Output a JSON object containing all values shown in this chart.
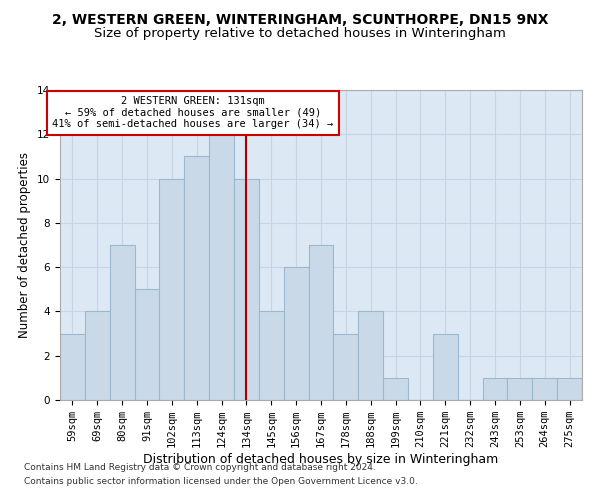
{
  "title1": "2, WESTERN GREEN, WINTERINGHAM, SCUNTHORPE, DN15 9NX",
  "title2": "Size of property relative to detached houses in Winteringham",
  "xlabel": "Distribution of detached houses by size in Winteringham",
  "ylabel": "Number of detached properties",
  "footnote1": "Contains HM Land Registry data © Crown copyright and database right 2024.",
  "footnote2": "Contains public sector information licensed under the Open Government Licence v3.0.",
  "categories": [
    "59sqm",
    "69sqm",
    "80sqm",
    "91sqm",
    "102sqm",
    "113sqm",
    "124sqm",
    "134sqm",
    "145sqm",
    "156sqm",
    "167sqm",
    "178sqm",
    "188sqm",
    "199sqm",
    "210sqm",
    "221sqm",
    "232sqm",
    "243sqm",
    "253sqm",
    "264sqm",
    "275sqm"
  ],
  "values": [
    3,
    4,
    7,
    5,
    10,
    11,
    12,
    10,
    4,
    6,
    7,
    3,
    4,
    1,
    0,
    3,
    0,
    1,
    1,
    1,
    1
  ],
  "bar_color": "#c9d9e8",
  "bar_edgecolor": "#9ab8d0",
  "bar_linewidth": 0.8,
  "vline_x_index": 7,
  "vline_color": "#aa0000",
  "annotation_text": "2 WESTERN GREEN: 131sqm\n← 59% of detached houses are smaller (49)\n41% of semi-detached houses are larger (34) →",
  "annotation_box_facecolor": "#ffffff",
  "annotation_box_edgecolor": "#cc0000",
  "ylim": [
    0,
    14
  ],
  "yticks": [
    0,
    2,
    4,
    6,
    8,
    10,
    12,
    14
  ],
  "grid_color": "#c8d4e4",
  "background_color": "#dce8f4",
  "title1_fontsize": 10,
  "title2_fontsize": 9.5,
  "xlabel_fontsize": 9,
  "ylabel_fontsize": 8.5,
  "tick_fontsize": 7.5,
  "annotation_fontsize": 7.5,
  "footnote_fontsize": 6.5
}
